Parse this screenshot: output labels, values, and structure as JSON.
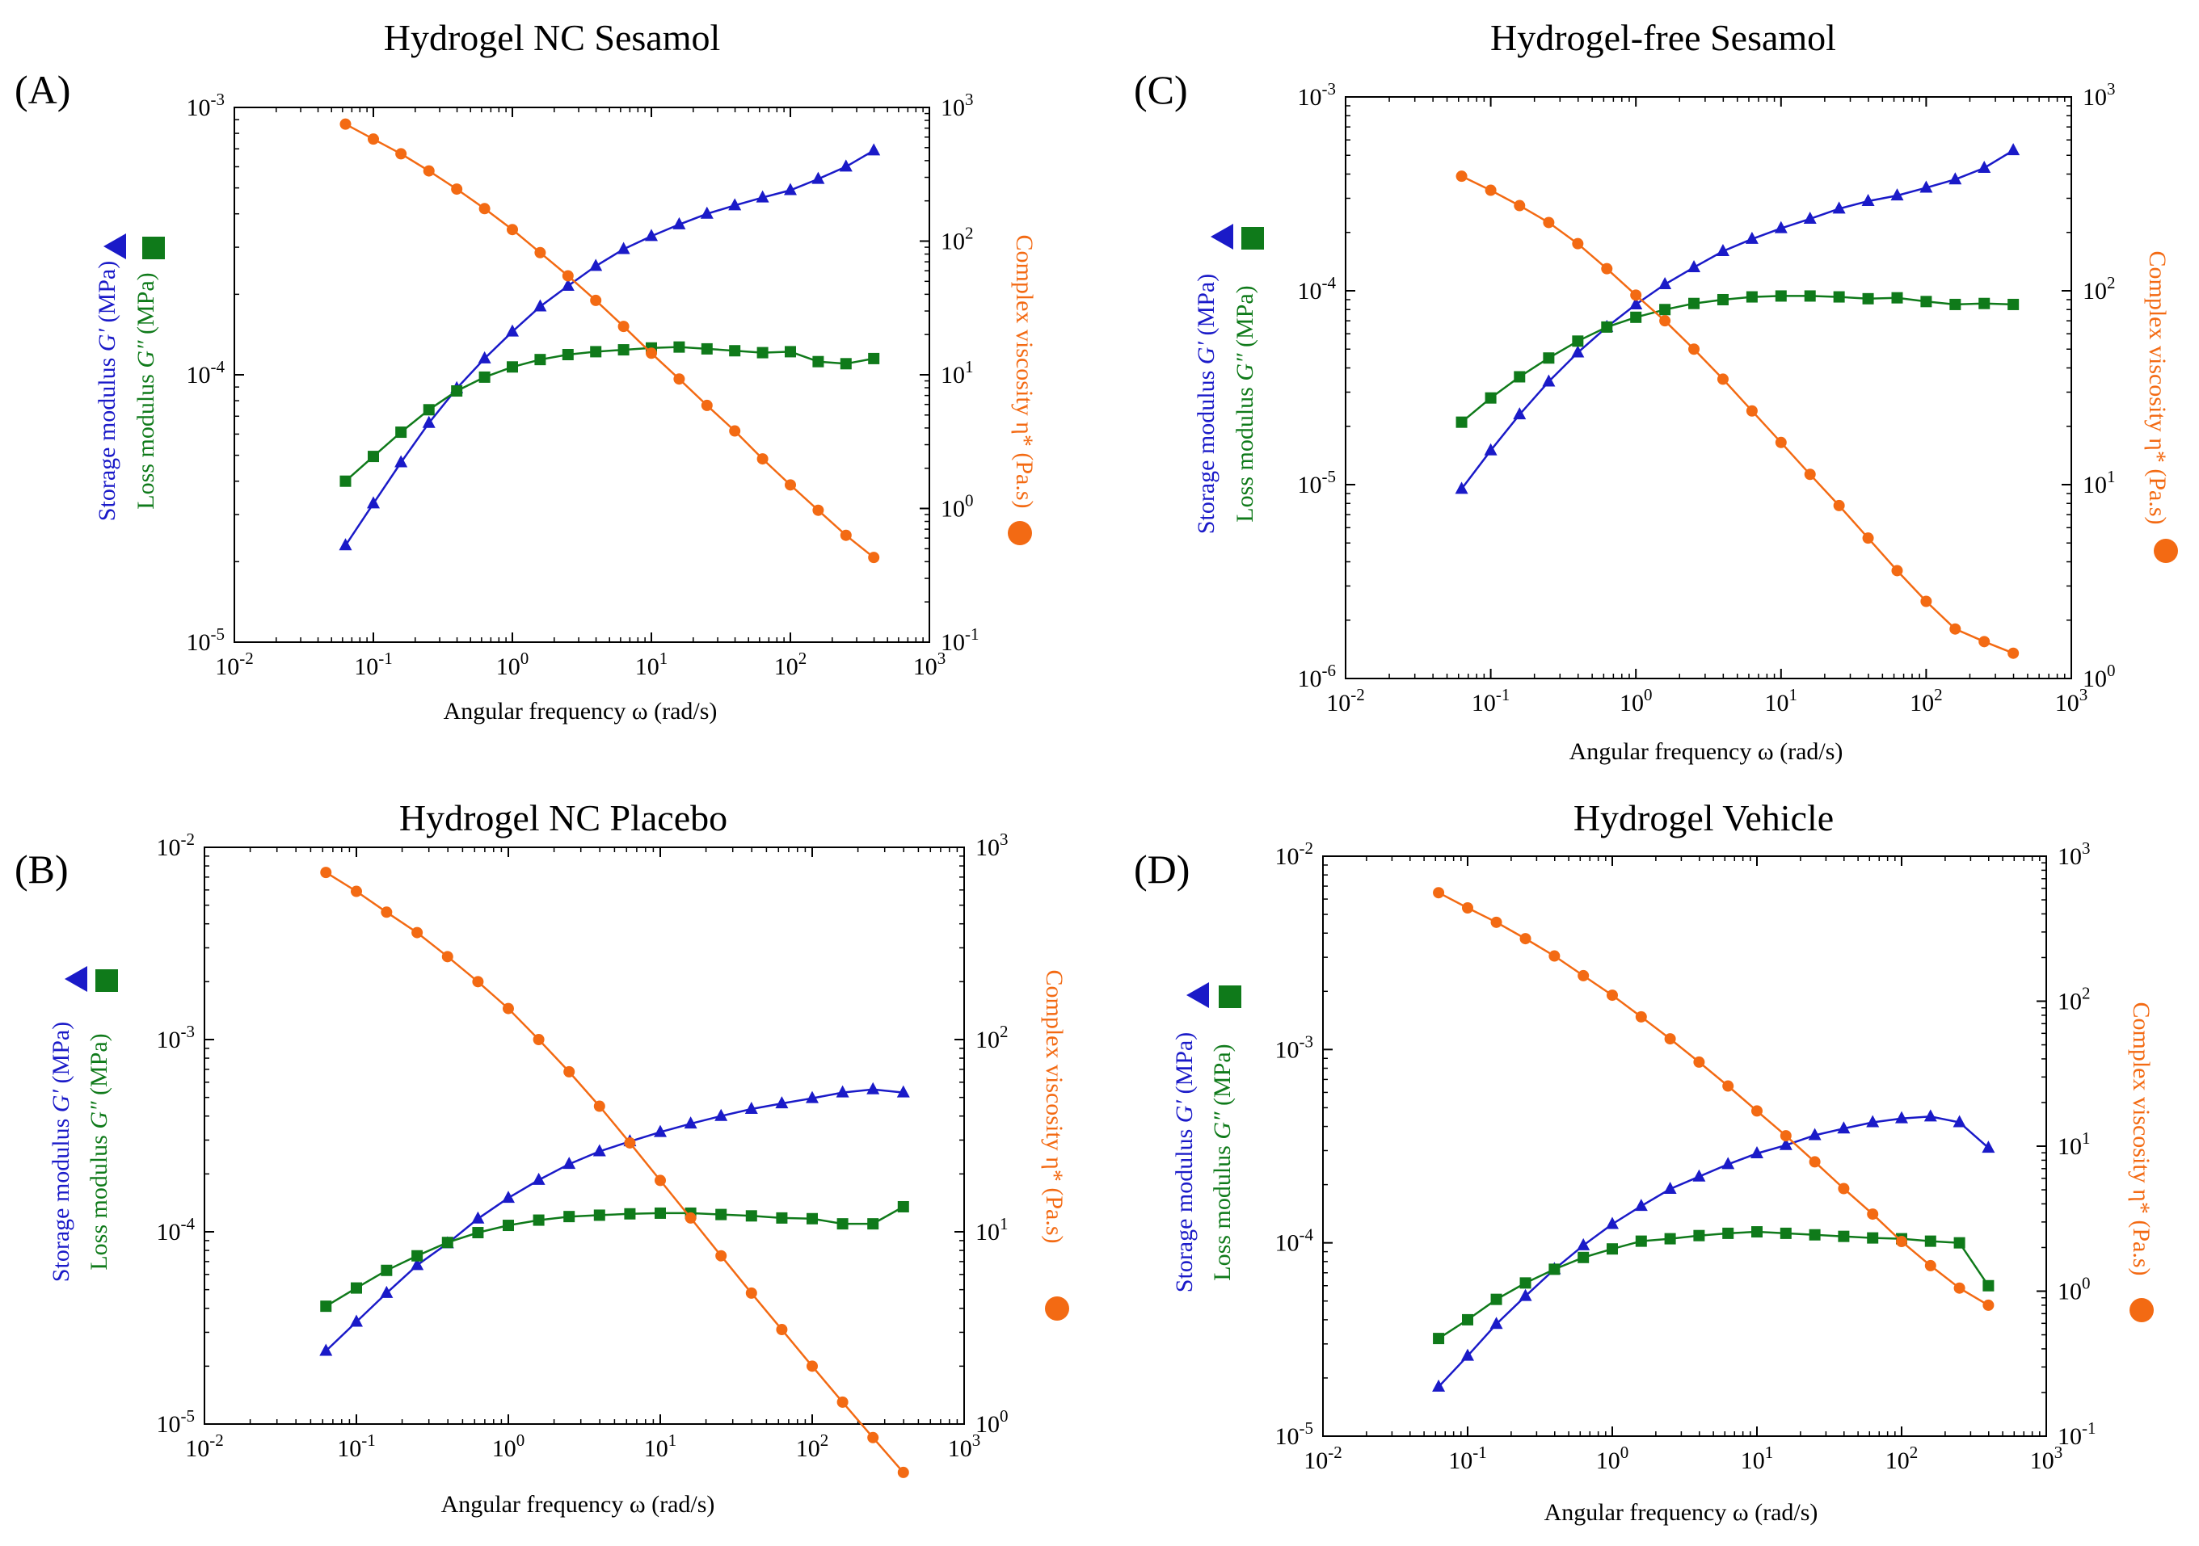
{
  "figure": "Rheology frequency sweeps of sesamol hydrogel formulations",
  "colors": {
    "storage": "#1a1ac8",
    "loss": "#0f7a1a",
    "viscosity": "#f36a13",
    "axis": "#000000"
  },
  "icons": {
    "storage": "triangle-icon",
    "loss": "square-icon",
    "viscosity": "circle-icon"
  },
  "chart_data": [
    {
      "panel": "(A)",
      "title": "Hydrogel NC Sesamol",
      "type": "line",
      "xlabel": "Angular frequency  ω  (rad/s)",
      "ylabel_storage": "Storage modulus ",
      "ylabel_storage_sym": "G′",
      "ylabel_storage_unit": " (MPa)",
      "ylabel_loss": "Loss modulus ",
      "ylabel_loss_sym": "G″",
      "ylabel_loss_unit": " (MPa)",
      "y2label": "Complex viscosity  η* (Pa.s)",
      "xlim_exp": [
        -2,
        3
      ],
      "ylim_exp": [
        -5,
        -3
      ],
      "y2lim_exp": [
        -1,
        3
      ],
      "x": [
        0.063,
        0.1,
        0.158,
        0.251,
        0.398,
        0.631,
        1.0,
        1.585,
        2.512,
        3.981,
        6.31,
        10.0,
        15.85,
        25.12,
        39.81,
        63.1,
        100.0,
        158.5,
        251.2,
        398.1
      ],
      "series": [
        {
          "name": "Storage modulus G′",
          "axis": "left",
          "marker": "triangle",
          "values": [
            2.3e-05,
            3.3e-05,
            4.7e-05,
            6.6e-05,
            8.9e-05,
            0.000115,
            0.000145,
            0.00018,
            0.000215,
            0.000255,
            0.000295,
            0.00033,
            0.000365,
            0.0004,
            0.00043,
            0.00046,
            0.00049,
            0.00054,
            0.0006,
            0.00069
          ]
        },
        {
          "name": "Loss modulus G″",
          "axis": "left",
          "marker": "square",
          "values": [
            4e-05,
            4.95e-05,
            6.1e-05,
            7.4e-05,
            8.7e-05,
            9.8e-05,
            0.000107,
            0.000114,
            0.000119,
            0.000122,
            0.000124,
            0.000126,
            0.000127,
            0.000125,
            0.000123,
            0.000121,
            0.000122,
            0.000112,
            0.00011,
            0.000115
          ]
        },
        {
          "name": "Complex viscosity η*",
          "axis": "right",
          "marker": "circle",
          "values": [
            750,
            580,
            450,
            335,
            245,
            175,
            122,
            82,
            55,
            36,
            23,
            14.5,
            9.3,
            5.9,
            3.8,
            2.35,
            1.5,
            0.97,
            0.63,
            0.43
          ]
        }
      ]
    },
    {
      "panel": "(B)",
      "title": "Hydrogel NC Placebo",
      "type": "line",
      "xlabel": "Angular frequency  ω  (rad/s)",
      "ylabel_storage": "Storage modulus ",
      "ylabel_storage_sym": "G′",
      "ylabel_storage_unit": " (MPa)",
      "ylabel_loss": "Loss modulus ",
      "ylabel_loss_sym": "G″",
      "ylabel_loss_unit": " (MPa)",
      "y2label": "Complex viscosity  η* (Pa.s)",
      "xlim_exp": [
        -2,
        3
      ],
      "ylim_exp": [
        -5,
        -2
      ],
      "y2lim_exp": [
        0,
        3
      ],
      "x": [
        0.063,
        0.1,
        0.158,
        0.251,
        0.398,
        0.631,
        1.0,
        1.585,
        2.512,
        3.981,
        6.31,
        10.0,
        15.85,
        25.12,
        39.81,
        63.1,
        100.0,
        158.5,
        251.2,
        398.1
      ],
      "series": [
        {
          "name": "Storage modulus G′",
          "axis": "left",
          "marker": "triangle",
          "values": [
            2.4e-05,
            3.4e-05,
            4.8e-05,
            6.7e-05,
            8.7e-05,
            0.000117,
            0.00015,
            0.000186,
            0.000225,
            0.000262,
            0.000295,
            0.00033,
            0.000365,
            0.0004,
            0.000435,
            0.000465,
            0.000495,
            0.00053,
            0.00055,
            0.00053
          ]
        },
        {
          "name": "Loss modulus G″",
          "axis": "left",
          "marker": "square",
          "values": [
            4.1e-05,
            5.1e-05,
            6.3e-05,
            7.5e-05,
            8.8e-05,
            9.9e-05,
            0.000108,
            0.000115,
            0.00012,
            0.000122,
            0.000124,
            0.000125,
            0.000125,
            0.000123,
            0.000121,
            0.000118,
            0.000117,
            0.00011,
            0.00011,
            0.000135
          ]
        },
        {
          "name": "Complex viscosity η*",
          "axis": "right",
          "marker": "circle",
          "values": [
            740,
            590,
            460,
            360,
            270,
            200,
            145,
            100,
            68,
            45,
            29,
            18.5,
            11.8,
            7.5,
            4.8,
            3.1,
            2.0,
            1.3,
            0.85,
            0.56
          ]
        }
      ]
    },
    {
      "panel": "(C)",
      "title": "Hydrogel-free Sesamol",
      "type": "line",
      "xlabel": "Angular frequency  ω  (rad/s)",
      "ylabel_storage": "Storage modulus ",
      "ylabel_storage_sym": "G′",
      "ylabel_storage_unit": " (MPa)",
      "ylabel_loss": "Loss modulus ",
      "ylabel_loss_sym": "G″",
      "ylabel_loss_unit": " (MPa)",
      "y2label": "Complex viscosity  η* (Pa.s)",
      "xlim_exp": [
        -2,
        3
      ],
      "ylim_exp": [
        -6,
        -3
      ],
      "y2lim_exp": [
        0,
        3
      ],
      "x": [
        0.063,
        0.1,
        0.158,
        0.251,
        0.398,
        0.631,
        1.0,
        1.585,
        2.512,
        3.981,
        6.31,
        10.0,
        15.85,
        25.12,
        39.81,
        63.1,
        100.0,
        158.5,
        251.2,
        398.1
      ],
      "series": [
        {
          "name": "Storage modulus G′",
          "axis": "left",
          "marker": "triangle",
          "values": [
            9.5e-06,
            1.5e-05,
            2.3e-05,
            3.4e-05,
            4.8e-05,
            6.5e-05,
            8.5e-05,
            0.000108,
            0.000132,
            0.00016,
            0.000185,
            0.00021,
            0.000235,
            0.000265,
            0.00029,
            0.00031,
            0.00034,
            0.000375,
            0.00043,
            0.00053
          ]
        },
        {
          "name": "Loss modulus G″",
          "axis": "left",
          "marker": "square",
          "values": [
            2.1e-05,
            2.8e-05,
            3.6e-05,
            4.5e-05,
            5.5e-05,
            6.5e-05,
            7.3e-05,
            8e-05,
            8.6e-05,
            9e-05,
            9.3e-05,
            9.4e-05,
            9.4e-05,
            9.3e-05,
            9.1e-05,
            9.2e-05,
            8.8e-05,
            8.5e-05,
            8.6e-05,
            8.5e-05
          ]
        },
        {
          "name": "Complex viscosity η*",
          "axis": "right",
          "marker": "circle",
          "values": [
            390,
            330,
            275,
            225,
            175,
            130,
            95,
            70,
            50,
            35,
            24,
            16.5,
            11.3,
            7.8,
            5.3,
            3.6,
            2.5,
            1.8,
            1.55,
            1.35
          ]
        }
      ]
    },
    {
      "panel": "(D)",
      "title": "Hydrogel Vehicle",
      "type": "line",
      "xlabel": "Angular frequency  ω  (rad/s)",
      "ylabel_storage": "Storage modulus ",
      "ylabel_storage_sym": "G′",
      "ylabel_storage_unit": " (MPa)",
      "ylabel_loss": "Loss modulus ",
      "ylabel_loss_sym": "G″",
      "ylabel_loss_unit": " (MPa)",
      "y2label": "Complex viscosity  η* (Pa.s)",
      "xlim_exp": [
        -2,
        3
      ],
      "ylim_exp": [
        -5,
        -2
      ],
      "y2lim_exp": [
        -1,
        3
      ],
      "x": [
        0.063,
        0.1,
        0.158,
        0.251,
        0.398,
        0.631,
        1.0,
        1.585,
        2.512,
        3.981,
        6.31,
        10.0,
        15.85,
        25.12,
        39.81,
        63.1,
        100.0,
        158.5,
        251.2,
        398.1
      ],
      "series": [
        {
          "name": "Storage modulus G′",
          "axis": "left",
          "marker": "triangle",
          "values": [
            1.8e-05,
            2.6e-05,
            3.8e-05,
            5.3e-05,
            7.3e-05,
            9.7e-05,
            0.000125,
            0.000155,
            0.00019,
            0.00022,
            0.000255,
            0.00029,
            0.00032,
            0.00036,
            0.00039,
            0.00042,
            0.00044,
            0.00045,
            0.00042,
            0.00031
          ]
        },
        {
          "name": "Loss modulus G″",
          "axis": "left",
          "marker": "square",
          "values": [
            3.2e-05,
            4e-05,
            5.1e-05,
            6.2e-05,
            7.3e-05,
            8.4e-05,
            9.3e-05,
            0.000102,
            0.000105,
            0.000109,
            0.000112,
            0.000114,
            0.000112,
            0.00011,
            0.000108,
            0.000106,
            0.000105,
            0.000102,
            0.0001,
            6e-05
          ]
        },
        {
          "name": "Complex viscosity η*",
          "axis": "right",
          "marker": "circle",
          "values": [
            560,
            440,
            350,
            270,
            205,
            150,
            110,
            78,
            55,
            38,
            26,
            17.5,
            11.8,
            7.8,
            5.1,
            3.4,
            2.2,
            1.5,
            1.05,
            0.8
          ]
        }
      ]
    }
  ]
}
